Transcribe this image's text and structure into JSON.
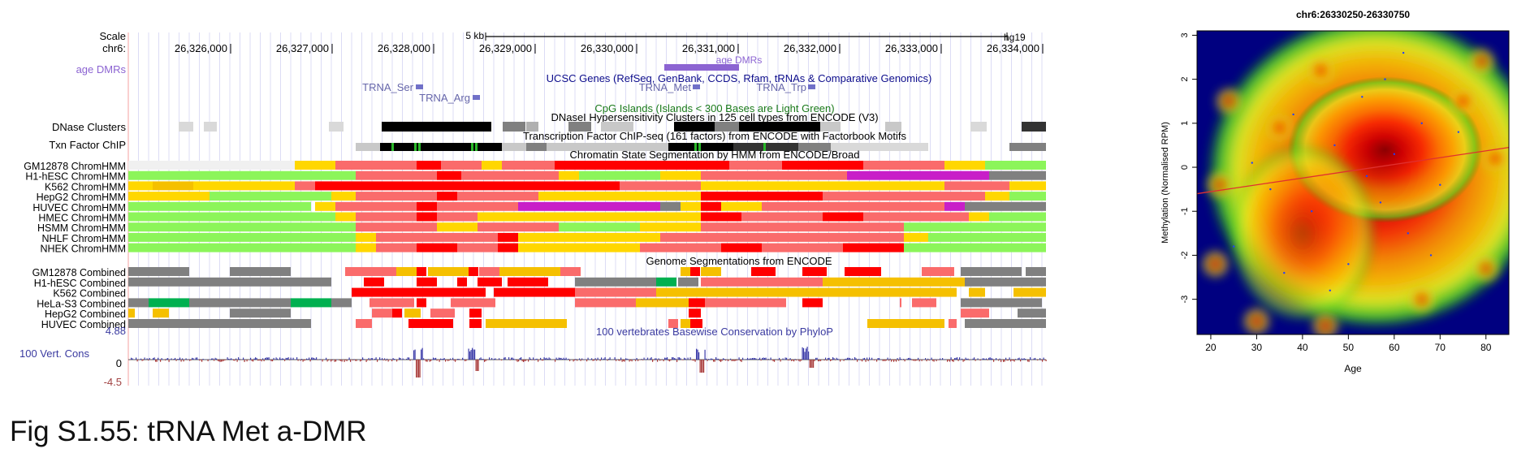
{
  "browser": {
    "scale_label": "Scale",
    "chrom_label": "chr6:",
    "scale_text": "5 kb",
    "assembly": "hg19",
    "positions": [
      "26,326,000",
      "26,327,000",
      "26,328,000",
      "26,329,000",
      "26,330,000",
      "26,331,000",
      "26,332,000",
      "26,333,000",
      "26,334,000"
    ],
    "tracks": {
      "age_dmrs": "age DMRs",
      "age_dmrs_feature": "age DMRs",
      "ucsc_genes": "UCSC Genes (RefSeq, GenBank, CCDS, Rfam, tRNAs & Comparative Genomics)",
      "trna_ser": "TRNA_Ser",
      "trna_arg": "TRNA_Arg",
      "trna_met": "TRNA_Met",
      "trna_trp": "TRNA_Trp",
      "cpg": "CpG Islands (Islands < 300 Bases are Light Green)",
      "dnase_label": "DNase Clusters",
      "dnase_title": "DNaseI Hypersensitivity Clusters in 125 cell types from ENCODE (V3)",
      "txn_label": "Txn Factor ChIP",
      "txn_title": "Transcription Factor ChIP-seq (161 factors) from ENCODE with Factorbook Motifs",
      "chromhmm_title": "Chromatin State Segmentation by HMM from ENCODE/Broad",
      "combined_title": "Genome Segmentations from ENCODE",
      "cons_title": "100 vertebrates Basewise Conservation by PhyloP",
      "cons_label": "100 Vert. Cons",
      "cons_max": "4.88",
      "cons_zero": "0",
      "cons_min": "-4.5"
    },
    "chromhmm_rows": [
      "GM12878 ChromHMM",
      "H1-hESC ChromHMM",
      "K562 ChromHMM",
      "HepG2 ChromHMM",
      "HUVEC ChromHMM",
      "HMEC ChromHMM",
      "HSMM ChromHMM",
      "NHLF ChromHMM",
      "NHEK ChromHMM"
    ],
    "combined_rows": [
      "GM12878 Combined",
      "H1-hESC Combined",
      "K562 Combined",
      "HeLa-S3 Combined",
      "HepG2 Combined",
      "HUVEC Combined"
    ],
    "colors": {
      "red": "#ff0000",
      "pink": "#fa6b6b",
      "yellow": "#ffd700",
      "orange": "#f5c000",
      "lime": "#8cf55a",
      "green": "#00b050",
      "magenta": "#c81ec8",
      "gray": "#808080",
      "lightgray": "#d9d9d9",
      "black": "#000000",
      "purple": "#8c64d2",
      "navy": "#0d0d8c"
    }
  },
  "chart_data": {
    "type": "scatter",
    "title": "chr6:26330250-26330750",
    "xlabel": "Age",
    "ylabel": "Methylation (Normalised RPM)",
    "xlim": [
      17,
      85
    ],
    "ylim": [
      -3.8,
      3.1
    ],
    "xticks": [
      20,
      30,
      40,
      50,
      60,
      70,
      80
    ],
    "yticks": [
      -3,
      -2,
      -1,
      0,
      1,
      2,
      3
    ],
    "rendering": "smoothed density (blue background, green-yellow-orange-red)",
    "trend_line": {
      "from": [
        17,
        -0.6
      ],
      "to": [
        85,
        0.45
      ],
      "color": "#e03030"
    }
  },
  "caption": "Fig S1.55: tRNA Met a-DMR"
}
